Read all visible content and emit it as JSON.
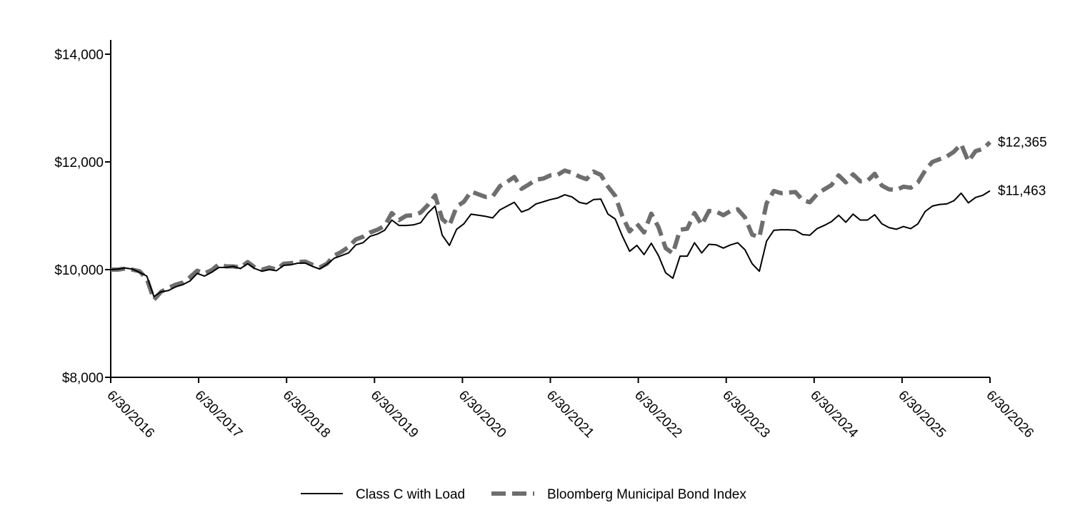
{
  "chart_data": {
    "type": "line",
    "title": "",
    "xlabel": "",
    "ylabel": "",
    "x_start": "6/30/2016",
    "x_end": "6/30/2026",
    "ylim": [
      8000,
      14000
    ],
    "y_ticks": [
      8000,
      10000,
      12000,
      14000
    ],
    "y_tick_labels": [
      "$8,000",
      "$10,000",
      "$12,000",
      "$14,000"
    ],
    "x_tick_labels": [
      "6/30/2016",
      "6/30/2017",
      "6/30/2018",
      "6/30/2019",
      "6/30/2020",
      "6/30/2021",
      "6/30/2022",
      "6/30/2023",
      "6/30/2024",
      "6/30/2025",
      "6/30/2026"
    ],
    "grid": false,
    "legend_position": "bottom",
    "series": [
      {
        "name": "Class C with Load",
        "style": "solid",
        "color": "#000000",
        "end_label": "$11,463",
        "values": [
          10000,
          10010,
          10030,
          10010,
          9950,
          9880,
          9500,
          9590,
          9610,
          9680,
          9720,
          9790,
          9930,
          9880,
          9950,
          10040,
          10040,
          10060,
          10020,
          10110,
          10020,
          9970,
          10000,
          9980,
          10080,
          10090,
          10120,
          10120,
          10060,
          10010,
          10100,
          10210,
          10260,
          10310,
          10460,
          10500,
          10620,
          10660,
          10730,
          10920,
          10820,
          10820,
          10830,
          10870,
          11050,
          11180,
          10640,
          10450,
          10750,
          10850,
          11030,
          11010,
          10990,
          10960,
          11110,
          11180,
          11250,
          11070,
          11120,
          11220,
          11260,
          11300,
          11330,
          11390,
          11350,
          11250,
          11220,
          11300,
          11310,
          11030,
          10940,
          10620,
          10340,
          10450,
          10280,
          10490,
          10260,
          9940,
          9840,
          10250,
          10250,
          10500,
          10310,
          10470,
          10460,
          10400,
          10460,
          10500,
          10370,
          10110,
          9970,
          10530,
          10730,
          10740,
          10740,
          10730,
          10650,
          10640,
          10760,
          10820,
          10890,
          11010,
          10880,
          11030,
          10920,
          10920,
          11020,
          10850,
          10780,
          10750,
          10800,
          10760,
          10850,
          11080,
          11180,
          11210,
          11220,
          11280,
          11420,
          11240,
          11340,
          11380,
          11463
        ]
      },
      {
        "name": "Bloomberg Municipal Bond Index",
        "style": "dashed",
        "color": "#6e6e6e",
        "end_label": "$12,365",
        "values": [
          10000,
          10000,
          10020,
          10000,
          9970,
          9830,
          9440,
          9590,
          9660,
          9720,
          9760,
          9860,
          9980,
          9930,
          9990,
          10100,
          10060,
          10060,
          10040,
          10140,
          10040,
          10000,
          10040,
          10000,
          10110,
          10120,
          10140,
          10150,
          10090,
          10040,
          10110,
          10260,
          10330,
          10420,
          10560,
          10610,
          10690,
          10740,
          10810,
          11050,
          10920,
          11000,
          11010,
          11060,
          11200,
          11380,
          10940,
          10820,
          11170,
          11260,
          11450,
          11400,
          11350,
          11360,
          11550,
          11630,
          11720,
          11500,
          11580,
          11670,
          11690,
          11750,
          11760,
          11840,
          11800,
          11730,
          11680,
          11820,
          11760,
          11540,
          11370,
          10990,
          10710,
          10850,
          10690,
          11040,
          10790,
          10400,
          10300,
          10740,
          10760,
          11050,
          10830,
          11090,
          11080,
          11010,
          11090,
          11120,
          10970,
          10650,
          10600,
          11230,
          11460,
          11420,
          11430,
          11440,
          11290,
          11250,
          11400,
          11490,
          11570,
          11750,
          11620,
          11770,
          11640,
          11650,
          11780,
          11560,
          11490,
          11480,
          11540,
          11520,
          11620,
          11840,
          12000,
          12050,
          12100,
          12190,
          12330,
          12010,
          12200,
          12240,
          12365
        ]
      }
    ]
  }
}
